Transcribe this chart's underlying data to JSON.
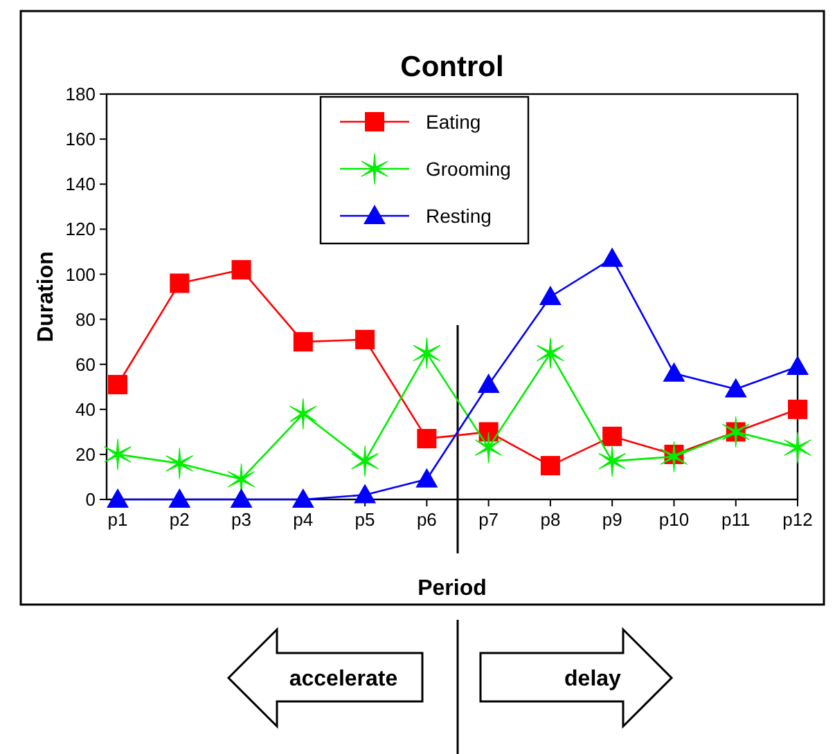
{
  "chart_data": {
    "type": "line",
    "title": "Control",
    "xlabel": "Period",
    "ylabel": "Duration",
    "categories": [
      "p1",
      "p2",
      "p3",
      "p4",
      "p5",
      "p6",
      "p7",
      "p8",
      "p9",
      "p10",
      "p11",
      "p12"
    ],
    "ylim": [
      0,
      180
    ],
    "yticks": [
      0,
      20,
      40,
      60,
      80,
      100,
      120,
      140,
      160,
      180
    ],
    "series": [
      {
        "name": "Eating",
        "color": "#ff0000",
        "marker": "square",
        "values": [
          51,
          96,
          102,
          70,
          71,
          27,
          30,
          15,
          28,
          20,
          30,
          40
        ]
      },
      {
        "name": "Grooming",
        "color": "#00ee00",
        "marker": "cross",
        "values": [
          20,
          16,
          9,
          38,
          17,
          65,
          23,
          65,
          17,
          19,
          30,
          23
        ]
      },
      {
        "name": "Resting",
        "color": "#0000ff",
        "marker": "triangle",
        "values": [
          0,
          0,
          0,
          0,
          2,
          9,
          51,
          90,
          107,
          56,
          49,
          59
        ]
      }
    ],
    "legend": "top",
    "grid": false,
    "annotations": [
      "accelerate",
      "delay"
    ]
  }
}
